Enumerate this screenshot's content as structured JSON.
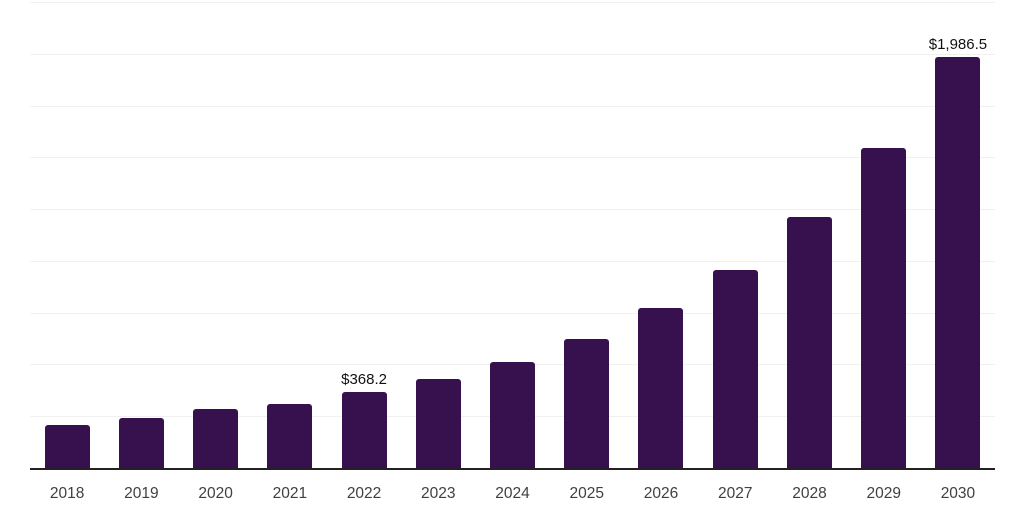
{
  "chart_data": {
    "type": "bar",
    "title": "",
    "xlabel": "",
    "ylabel": "",
    "categories": [
      "2018",
      "2019",
      "2020",
      "2021",
      "2022",
      "2023",
      "2024",
      "2025",
      "2026",
      "2027",
      "2028",
      "2029",
      "2030"
    ],
    "values": [
      207,
      243,
      285,
      309,
      368.2,
      430,
      512,
      623,
      773,
      957,
      1213,
      1547,
      1986.5
    ],
    "data_labels": [
      null,
      null,
      null,
      null,
      "$368.2",
      null,
      null,
      null,
      null,
      null,
      null,
      null,
      "$1,986.5"
    ],
    "ylim": [
      0,
      2250
    ],
    "gridline_step": 250,
    "grid": "horizontal",
    "legend": "none",
    "bar_color": "#36114e",
    "gridline_color": "#f0f0f0",
    "axis_line_color": "#222222",
    "tick_label_color": "#404040",
    "data_label_color": "#111111"
  }
}
